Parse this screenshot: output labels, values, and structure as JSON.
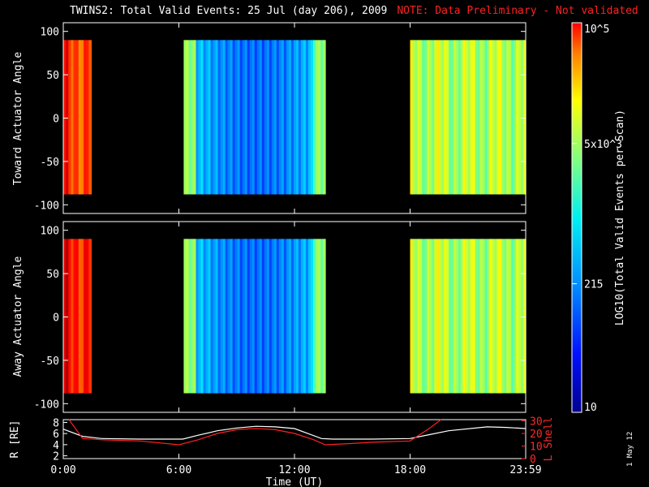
{
  "title": "TWINS2: Total Valid Events: 25 Jul (day 206), 2009",
  "note": "NOTE: Data Preliminary - Not validated",
  "datestamp": "1 May 12",
  "colors": {
    "background": "#000000",
    "note": "#ff2020",
    "r_line": "#ffffff",
    "lshell_line": "#ff2020"
  },
  "chart_data": [
    {
      "type": "heatmap",
      "name": "toward",
      "ylabel": "Toward Actuator Angle",
      "ylim": [
        -110,
        110
      ],
      "y_ticks": [
        "100",
        "50",
        "0",
        "-50",
        "-100"
      ],
      "y_tick_values": [
        100,
        50,
        0,
        -50,
        -100
      ],
      "data_y_range": [
        -88,
        90
      ],
      "x_range_hours": [
        0,
        24
      ],
      "segments": [
        {
          "start": 0.0,
          "end": 1.45,
          "level": 0.82
        },
        {
          "start": 6.25,
          "end": 13.6,
          "level": 0.35
        },
        {
          "start": 18.0,
          "end": 24.0,
          "level": 0.55
        }
      ]
    },
    {
      "type": "heatmap",
      "name": "away",
      "ylabel": "Away Actuator Angle",
      "ylim": [
        -110,
        110
      ],
      "y_ticks": [
        "100",
        "50",
        "0",
        "-50",
        "-100"
      ],
      "y_tick_values": [
        100,
        50,
        0,
        -50,
        -100
      ],
      "data_y_range": [
        -88,
        90
      ],
      "x_range_hours": [
        0,
        24
      ],
      "segments": [
        {
          "start": 0.0,
          "end": 1.45,
          "level": 0.86
        },
        {
          "start": 6.25,
          "end": 13.6,
          "level": 0.35
        },
        {
          "start": 18.0,
          "end": 24.0,
          "level": 0.55
        }
      ]
    },
    {
      "type": "line",
      "name": "orbit",
      "ylabel_left": "R [RE]",
      "ylabel_right": "L Shell",
      "y_left_ticks": [
        "8",
        "6",
        "4",
        "2"
      ],
      "y_left_values": [
        8,
        6,
        4,
        2
      ],
      "y_left_range": [
        1.5,
        8.5
      ],
      "y_right_ticks": [
        "30",
        "20",
        "10",
        "0"
      ],
      "y_right_values": [
        30,
        20,
        10,
        0
      ],
      "y_right_range": [
        0,
        31
      ],
      "series": [
        {
          "name": "R",
          "axis": "left",
          "x": [
            0,
            1,
            2,
            4,
            6.2,
            7,
            8,
            9,
            10,
            11,
            12,
            13.4,
            14,
            16,
            18,
            19,
            20,
            22,
            23,
            24
          ],
          "y": [
            6.8,
            5.5,
            5.1,
            5.0,
            5.0,
            5.7,
            6.5,
            7.0,
            7.3,
            7.2,
            6.9,
            5.1,
            5.0,
            5.0,
            5.1,
            5.8,
            6.5,
            7.2,
            7.1,
            6.9
          ]
        },
        {
          "name": "L Shell",
          "axis": "right",
          "x": [
            0.3,
            1.0,
            2.0,
            4.0,
            6.0,
            7.0,
            8.0,
            9.0,
            10.0,
            11.0,
            12.0,
            13.0,
            13.6,
            15.0,
            16.0,
            18.0,
            19.0,
            19.6
          ],
          "y": [
            31,
            16,
            15,
            14,
            11,
            15,
            20,
            23,
            24,
            23,
            20,
            15,
            11,
            12,
            13,
            14,
            24,
            31
          ]
        }
      ]
    }
  ],
  "time_axis": {
    "label": "Time (UT)",
    "ticks": [
      "0:00",
      "6:00",
      "12:00",
      "18:00",
      "23:59"
    ],
    "tick_hours": [
      0,
      6,
      12,
      18,
      24
    ]
  },
  "colorbar": {
    "label": "LOG10(Total Valid Events per Scan)",
    "tick_labels": [
      "10^5",
      "5x10^3",
      "215",
      "10"
    ],
    "tick_fractions": [
      1.0,
      0.69,
      0.33,
      0.0
    ]
  }
}
